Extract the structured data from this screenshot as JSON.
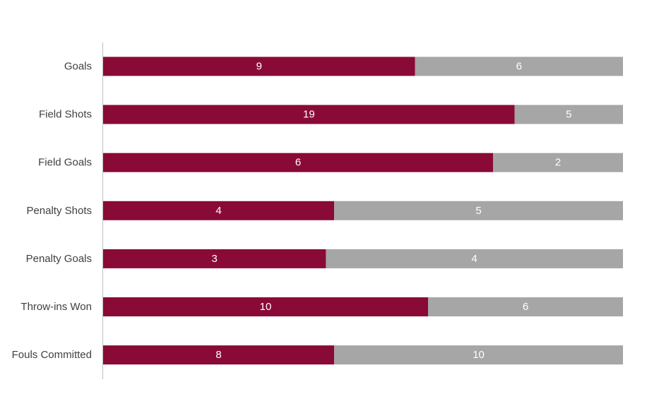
{
  "chart_data": {
    "type": "bar",
    "orientation": "horizontal",
    "stacking": "100%",
    "title": "",
    "xlabel": "",
    "ylabel": "",
    "grid": false,
    "legend": "none",
    "categories": [
      "Goals",
      "Field Shots",
      "Field Goals",
      "Penalty Shots",
      "Penalty Goals",
      "Throw-ins Won",
      "Fouls Committed"
    ],
    "series": [
      {
        "color": "#8a0a37",
        "values": [
          9,
          19,
          6,
          4,
          3,
          10,
          8
        ]
      },
      {
        "color": "#a6a6a6",
        "values": [
          6,
          5,
          2,
          5,
          4,
          6,
          10
        ]
      }
    ],
    "label_color": "#ffffff",
    "axis_color": "#bfbfbf",
    "category_label_color": "#404040"
  }
}
